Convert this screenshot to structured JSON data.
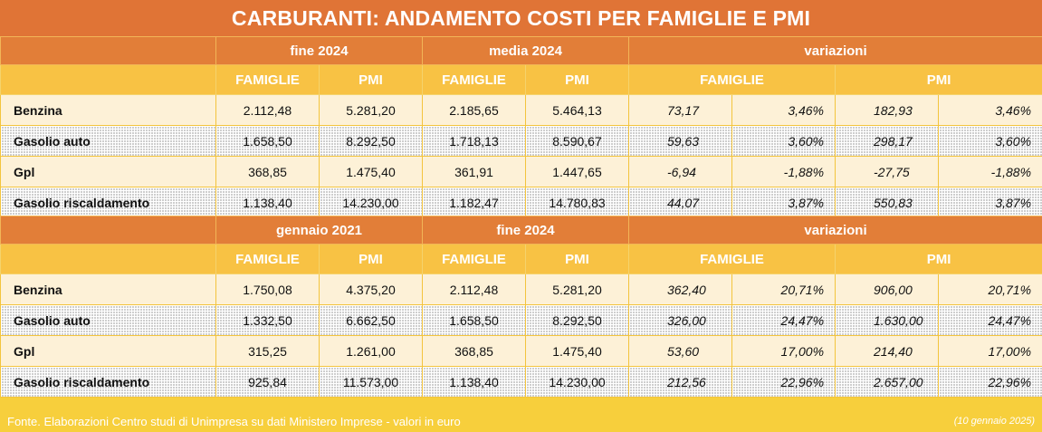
{
  "title": "CARBURANTI: ANDAMENTO COSTI PER FAMIGLIE E PMI",
  "col_famiglie": "FAMIGLIE",
  "col_pmi": "PMI",
  "col_variazioni": "variazioni",
  "section1": {
    "period_a": "fine 2024",
    "period_b": "media 2024",
    "rows": [
      {
        "label": "Benzina",
        "a_fam": "2.112,48",
        "a_pmi": "5.281,20",
        "b_fam": "2.185,65",
        "b_pmi": "5.464,13",
        "v_fam_abs": "73,17",
        "v_fam_pct": "3,46%",
        "v_pmi_abs": "182,93",
        "v_pmi_pct": "3,46%"
      },
      {
        "label": "Gasolio auto",
        "a_fam": "1.658,50",
        "a_pmi": "8.292,50",
        "b_fam": "1.718,13",
        "b_pmi": "8.590,67",
        "v_fam_abs": "59,63",
        "v_fam_pct": "3,60%",
        "v_pmi_abs": "298,17",
        "v_pmi_pct": "3,60%"
      },
      {
        "label": "Gpl",
        "a_fam": "368,85",
        "a_pmi": "1.475,40",
        "b_fam": "361,91",
        "b_pmi": "1.447,65",
        "v_fam_abs": "-6,94",
        "v_fam_pct": "-1,88%",
        "v_pmi_abs": "-27,75",
        "v_pmi_pct": "-1,88%"
      },
      {
        "label": "Gasolio riscaldamento",
        "a_fam": "1.138,40",
        "a_pmi": "14.230,00",
        "b_fam": "1.182,47",
        "b_pmi": "14.780,83",
        "v_fam_abs": "44,07",
        "v_fam_pct": "3,87%",
        "v_pmi_abs": "550,83",
        "v_pmi_pct": "3,87%"
      }
    ]
  },
  "section2": {
    "period_a": "gennaio 2021",
    "period_b": "fine 2024",
    "rows": [
      {
        "label": "Benzina",
        "a_fam": "1.750,08",
        "a_pmi": "4.375,20",
        "b_fam": "2.112,48",
        "b_pmi": "5.281,20",
        "v_fam_abs": "362,40",
        "v_fam_pct": "20,71%",
        "v_pmi_abs": "906,00",
        "v_pmi_pct": "20,71%"
      },
      {
        "label": "Gasolio auto",
        "a_fam": "1.332,50",
        "a_pmi": "6.662,50",
        "b_fam": "1.658,50",
        "b_pmi": "8.292,50",
        "v_fam_abs": "326,00",
        "v_fam_pct": "24,47%",
        "v_pmi_abs": "1.630,00",
        "v_pmi_pct": "24,47%"
      },
      {
        "label": "Gpl",
        "a_fam": "315,25",
        "a_pmi": "1.261,00",
        "b_fam": "368,85",
        "b_pmi": "1.475,40",
        "v_fam_abs": "53,60",
        "v_fam_pct": "17,00%",
        "v_pmi_abs": "214,40",
        "v_pmi_pct": "17,00%"
      },
      {
        "label": "Gasolio riscaldamento",
        "a_fam": "925,84",
        "a_pmi": "11.573,00",
        "b_fam": "1.138,40",
        "b_pmi": "14.230,00",
        "v_fam_abs": "212,56",
        "v_fam_pct": "22,96%",
        "v_pmi_abs": "2.657,00",
        "v_pmi_pct": "22,96%"
      }
    ]
  },
  "footer": "Fonte. Elaborazioni Centro studi di Unimpresa su dati Ministero Imprese - valori in euro",
  "date_note": "(10 gennaio 2025)",
  "colors": {
    "title_bg": "#e07436",
    "header_bg": "#e27e38",
    "subheader_bg": "#f8c244",
    "page_bg": "#f7cf3c",
    "row_light": "#fdf1d7"
  }
}
